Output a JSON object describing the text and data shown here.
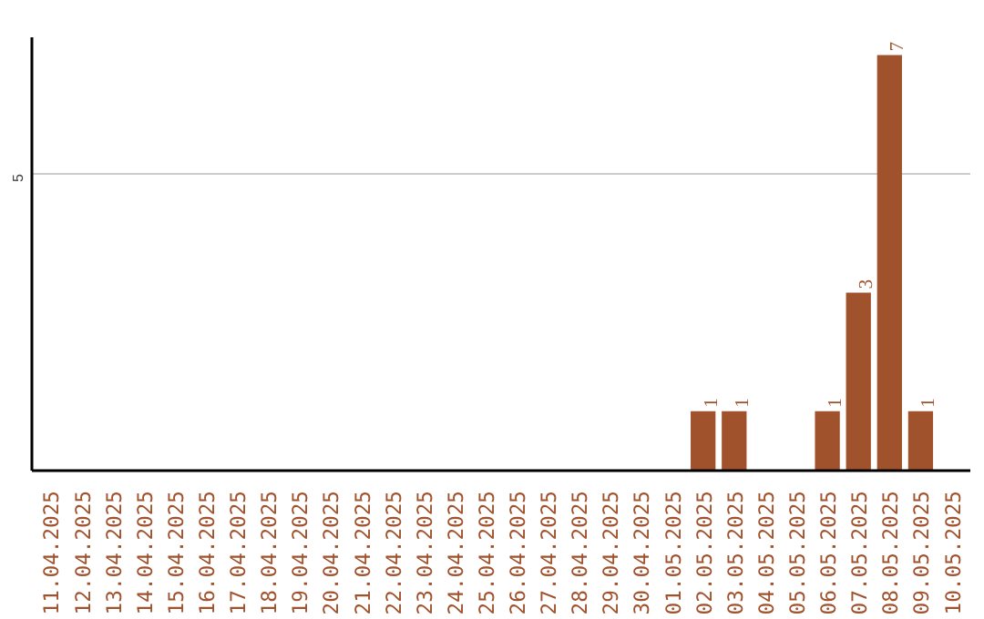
{
  "chart_data": {
    "type": "bar",
    "categories": [
      "11.04.2025",
      "12.04.2025",
      "13.04.2025",
      "14.04.2025",
      "15.04.2025",
      "16.04.2025",
      "17.04.2025",
      "18.04.2025",
      "19.04.2025",
      "20.04.2025",
      "21.04.2025",
      "22.04.2025",
      "23.04.2025",
      "24.04.2025",
      "25.04.2025",
      "26.04.2025",
      "27.04.2025",
      "28.04.2025",
      "29.04.2025",
      "30.04.2025",
      "01.05.2025",
      "02.05.2025",
      "03.05.2025",
      "04.05.2025",
      "05.05.2025",
      "06.05.2025",
      "07.05.2025",
      "08.05.2025",
      "09.05.2025",
      "10.05.2025"
    ],
    "values": [
      null,
      null,
      null,
      null,
      null,
      null,
      null,
      null,
      null,
      null,
      null,
      null,
      null,
      null,
      null,
      null,
      null,
      null,
      null,
      null,
      null,
      1,
      1,
      null,
      null,
      1,
      3,
      7,
      1,
      null
    ],
    "data_labels": true,
    "color": "#a0522d",
    "ylim": [
      0,
      7.3
    ],
    "yticks": [
      5
    ],
    "grid": "y"
  }
}
